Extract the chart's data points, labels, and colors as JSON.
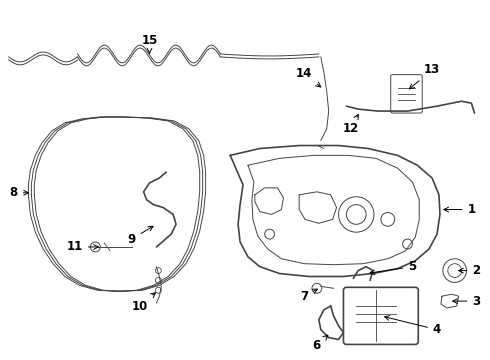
{
  "bg_color": "#ffffff",
  "line_color": "#444444",
  "lw_main": 1.2,
  "lw_thin": 0.7,
  "fontsize": 8.5
}
